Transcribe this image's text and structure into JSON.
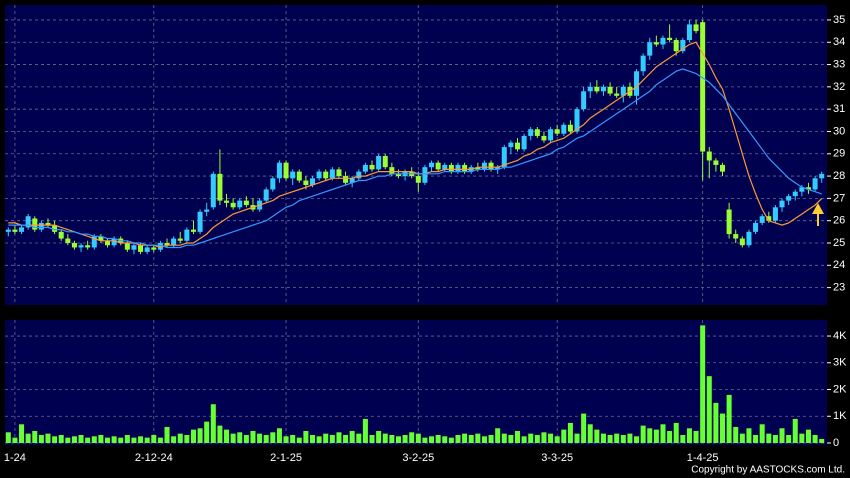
{
  "chart_data": {
    "type": "candlestick",
    "categories": [
      null,
      "1-24",
      null,
      null,
      null,
      null,
      null,
      null,
      null,
      null,
      null,
      null,
      null,
      null,
      null,
      null,
      null,
      null,
      null,
      null,
      null,
      null,
      "2-12-24",
      null,
      null,
      null,
      null,
      null,
      null,
      null,
      null,
      null,
      null,
      null,
      null,
      null,
      null,
      null,
      null,
      null,
      null,
      null,
      "2-1-25",
      null,
      null,
      null,
      null,
      null,
      null,
      null,
      null,
      null,
      null,
      null,
      null,
      null,
      null,
      null,
      null,
      null,
      null,
      null,
      "3-2-25",
      null,
      null,
      null,
      null,
      null,
      null,
      null,
      null,
      null,
      null,
      null,
      null,
      null,
      null,
      null,
      null,
      null,
      null,
      null,
      null,
      "3-3-25",
      null,
      null,
      null,
      null,
      null,
      null,
      null,
      null,
      null,
      null,
      null,
      null,
      null,
      null,
      null,
      null,
      null,
      null,
      null,
      null,
      null,
      "1-4-25",
      null,
      null,
      null,
      null,
      null,
      null,
      null,
      null,
      null,
      null,
      null,
      null,
      null,
      null,
      null,
      null,
      null,
      null
    ],
    "open": [
      25.5,
      25.6,
      25.5,
      25.7,
      26.1,
      25.6,
      25.9,
      25.8,
      25.5,
      25.2,
      25.0,
      24.8,
      24.9,
      24.8,
      25.3,
      25.1,
      24.9,
      25.2,
      25.0,
      24.7,
      24.9,
      24.6,
      24.8,
      24.7,
      25.0,
      24.9,
      25.2,
      25.1,
      25.6,
      25.5,
      26.4,
      26.6,
      28.1,
      26.9,
      26.8,
      26.6,
      26.9,
      26.7,
      26.5,
      26.9,
      27.4,
      27.9,
      28.6,
      27.9,
      28.2,
      27.8,
      27.6,
      27.9,
      28.2,
      27.9,
      28.3,
      28.0,
      27.7,
      27.9,
      28.2,
      28.5,
      28.3,
      28.9,
      28.4,
      28.1,
      28.0,
      28.2,
      28.0,
      27.7,
      28.4,
      28.6,
      28.3,
      28.5,
      28.2,
      28.5,
      28.2,
      28.4,
      28.3,
      28.6,
      28.3,
      28.4,
      29.3,
      29.5,
      29.2,
      29.8,
      30.1,
      29.8,
      29.6,
      30.1,
      29.9,
      30.3,
      30.0,
      31.0,
      31.8,
      32.0,
      31.8,
      32.0,
      31.7,
      31.6,
      32.0,
      31.6,
      32.7,
      33.4,
      34.0,
      33.9,
      34.2,
      34.1,
      33.6,
      34.1,
      34.8,
      34.9,
      29.1,
      28.7,
      28.5,
      26.5,
      25.4,
      25.2,
      24.9,
      25.5,
      25.9,
      26.2,
      26.0,
      26.6,
      26.9,
      27.1,
      27.3,
      27.5,
      27.4,
      27.9
    ],
    "high": [
      25.7,
      25.8,
      25.8,
      26.3,
      26.2,
      26.0,
      26.1,
      26.0,
      25.6,
      25.4,
      25.1,
      25.0,
      25.1,
      25.4,
      25.4,
      25.2,
      25.3,
      25.3,
      25.1,
      25.0,
      25.0,
      24.9,
      24.9,
      25.1,
      25.2,
      25.3,
      25.5,
      25.7,
      26.0,
      26.5,
      26.8,
      28.2,
      29.2,
      27.2,
      27.0,
      27.0,
      27.1,
      27.0,
      27.0,
      27.5,
      28.0,
      28.7,
      28.7,
      28.3,
      28.3,
      28.0,
      28.0,
      28.3,
      28.3,
      28.4,
      28.4,
      28.2,
      28.0,
      28.3,
      28.6,
      28.7,
      29.0,
      29.0,
      28.6,
      28.3,
      28.3,
      28.4,
      28.2,
      28.5,
      28.7,
      28.7,
      28.6,
      28.6,
      28.6,
      28.6,
      28.5,
      28.6,
      28.7,
      28.7,
      28.5,
      29.4,
      29.6,
      29.7,
      29.9,
      30.2,
      30.2,
      30.0,
      30.2,
      30.3,
      30.4,
      30.5,
      31.1,
      32.0,
      32.2,
      32.3,
      32.1,
      32.2,
      32.0,
      32.1,
      32.2,
      32.8,
      33.5,
      34.2,
      34.3,
      34.3,
      34.8,
      34.2,
      34.2,
      35.0,
      35.0,
      35.0,
      29.3,
      28.8,
      28.6,
      26.8,
      25.6,
      25.3,
      25.6,
      26.0,
      26.3,
      26.4,
      26.7,
      27.0,
      27.2,
      27.4,
      27.6,
      27.7,
      28.0,
      28.2
    ],
    "low": [
      25.3,
      25.4,
      25.4,
      25.6,
      25.5,
      25.5,
      25.7,
      25.4,
      25.1,
      24.9,
      24.7,
      24.6,
      24.7,
      24.7,
      25.0,
      24.8,
      24.8,
      24.9,
      24.6,
      24.5,
      24.5,
      24.5,
      24.6,
      24.6,
      24.8,
      24.8,
      25.0,
      25.0,
      25.4,
      25.4,
      26.2,
      26.5,
      26.7,
      26.6,
      26.5,
      26.5,
      26.6,
      26.4,
      26.4,
      26.8,
      27.3,
      27.7,
      27.8,
      27.6,
      27.7,
      27.4,
      27.5,
      27.8,
      27.8,
      27.8,
      27.9,
      27.6,
      27.5,
      27.8,
      28.1,
      28.2,
      28.2,
      28.3,
      28.0,
      27.9,
      27.8,
      27.9,
      27.3,
      27.6,
      28.2,
      28.2,
      28.2,
      28.1,
      28.1,
      28.1,
      28.1,
      28.2,
      28.2,
      28.2,
      28.1,
      28.3,
      29.0,
      29.1,
      29.1,
      29.6,
      29.7,
      29.5,
      29.5,
      29.8,
      29.8,
      29.9,
      29.9,
      30.9,
      31.5,
      31.7,
      31.6,
      31.6,
      31.5,
      31.3,
      31.5,
      31.2,
      32.5,
      33.2,
      33.8,
      33.7,
      34.0,
      33.4,
      33.5,
      34.0,
      34.4,
      27.8,
      27.9,
      28.2,
      28.0,
      25.2,
      25.0,
      24.8,
      24.8,
      25.4,
      25.8,
      25.9,
      25.9,
      26.4,
      26.7,
      26.9,
      27.1,
      27.2,
      27.3,
      27.7
    ],
    "close": [
      25.6,
      25.5,
      25.7,
      26.2,
      25.6,
      25.9,
      25.8,
      25.5,
      25.2,
      25.0,
      24.8,
      24.9,
      24.8,
      25.3,
      25.1,
      24.9,
      25.2,
      25.0,
      24.7,
      24.9,
      24.6,
      24.8,
      24.7,
      25.0,
      24.9,
      25.2,
      25.1,
      25.6,
      25.5,
      26.4,
      26.5,
      28.1,
      26.9,
      26.8,
      26.6,
      26.9,
      26.7,
      26.5,
      26.9,
      27.4,
      27.9,
      28.6,
      27.9,
      28.2,
      27.8,
      27.6,
      27.9,
      28.2,
      27.9,
      28.3,
      28.0,
      27.7,
      27.9,
      28.2,
      28.5,
      28.3,
      28.9,
      28.4,
      28.1,
      28.0,
      28.2,
      28.0,
      27.7,
      28.4,
      28.6,
      28.3,
      28.5,
      28.2,
      28.5,
      28.2,
      28.4,
      28.3,
      28.6,
      28.3,
      28.4,
      29.3,
      29.5,
      29.2,
      29.8,
      30.1,
      29.8,
      29.6,
      30.1,
      29.9,
      30.3,
      30.0,
      31.0,
      31.8,
      32.0,
      31.8,
      32.0,
      31.7,
      31.6,
      32.0,
      31.6,
      32.7,
      33.4,
      34.0,
      33.9,
      34.2,
      34.1,
      33.6,
      34.1,
      34.8,
      34.5,
      29.1,
      28.7,
      28.5,
      28.2,
      25.4,
      25.2,
      24.9,
      25.5,
      25.9,
      26.2,
      26.0,
      26.6,
      26.9,
      27.1,
      27.3,
      27.5,
      27.4,
      27.9,
      28.1
    ],
    "up_color": "#33ccff",
    "down_color": "#99ff33",
    "ma": [
      {
        "color": "#ff9933",
        "values": [
          25.9,
          25.9,
          25.8,
          25.8,
          25.8,
          25.8,
          25.8,
          25.8,
          25.7,
          25.6,
          25.5,
          25.4,
          25.3,
          25.2,
          25.1,
          25.1,
          25.1,
          25.0,
          25.0,
          25.0,
          24.9,
          24.9,
          24.9,
          24.8,
          24.9,
          24.9,
          24.9,
          25.0,
          25.0,
          25.2,
          25.4,
          25.7,
          25.9,
          26.1,
          26.3,
          26.4,
          26.5,
          26.6,
          26.7,
          26.8,
          26.9,
          27.1,
          27.2,
          27.3,
          27.4,
          27.5,
          27.6,
          27.7,
          27.8,
          27.9,
          27.9,
          27.9,
          27.9,
          28.0,
          28.0,
          28.1,
          28.2,
          28.2,
          28.2,
          28.2,
          28.2,
          28.2,
          28.1,
          28.1,
          28.2,
          28.2,
          28.3,
          28.3,
          28.3,
          28.3,
          28.3,
          28.4,
          28.4,
          28.4,
          28.4,
          28.5,
          28.6,
          28.7,
          28.9,
          29.0,
          29.2,
          29.3,
          29.5,
          29.6,
          29.7,
          29.9,
          30.1,
          30.3,
          30.6,
          30.8,
          31.0,
          31.2,
          31.4,
          31.6,
          31.8,
          32.0,
          32.3,
          32.6,
          32.9,
          33.1,
          33.3,
          33.5,
          33.7,
          33.9,
          34.0,
          33.5,
          33.0,
          32.4,
          31.9,
          31.0,
          30.0,
          29.0,
          28.0,
          27.2,
          26.5,
          26.0,
          25.9,
          25.8,
          25.9,
          26.1,
          26.3,
          26.5,
          26.7,
          27.0
        ]
      },
      {
        "color": "#3399ff",
        "values": [
          25.8,
          25.8,
          25.8,
          25.8,
          25.7,
          25.7,
          25.7,
          25.6,
          25.6,
          25.5,
          25.5,
          25.4,
          25.4,
          25.3,
          25.3,
          25.2,
          25.2,
          25.1,
          25.1,
          25.0,
          25.0,
          24.9,
          24.9,
          24.9,
          24.8,
          24.8,
          24.8,
          24.9,
          24.9,
          25.0,
          25.1,
          25.2,
          25.3,
          25.4,
          25.5,
          25.6,
          25.7,
          25.8,
          25.9,
          26.0,
          26.2,
          26.4,
          26.6,
          26.7,
          26.9,
          27.0,
          27.1,
          27.2,
          27.3,
          27.4,
          27.5,
          27.6,
          27.7,
          27.8,
          27.8,
          27.9,
          28.0,
          28.0,
          28.1,
          28.1,
          28.1,
          28.1,
          28.1,
          28.1,
          28.1,
          28.1,
          28.2,
          28.2,
          28.2,
          28.2,
          28.2,
          28.3,
          28.3,
          28.3,
          28.3,
          28.4,
          28.4,
          28.5,
          28.6,
          28.7,
          28.8,
          28.9,
          29.0,
          29.2,
          29.3,
          29.5,
          29.7,
          29.8,
          30.0,
          30.2,
          30.4,
          30.6,
          30.8,
          31.0,
          31.2,
          31.4,
          31.6,
          31.8,
          32.1,
          32.3,
          32.5,
          32.7,
          32.8,
          32.7,
          32.6,
          32.4,
          32.2,
          31.9,
          31.6,
          31.2,
          30.8,
          30.4,
          30.0,
          29.6,
          29.2,
          28.8,
          28.5,
          28.2,
          27.9,
          27.7,
          27.5,
          27.4,
          27.3,
          27.2
        ]
      }
    ],
    "ylim": [
      22.22,
      35.67
    ],
    "yticks": [
      23,
      24,
      25,
      26,
      27,
      28,
      29,
      30,
      31,
      32,
      33,
      34,
      35
    ],
    "grid": true,
    "volume": {
      "color": "#66ff33",
      "values": [
        400,
        200,
        700,
        350,
        450,
        300,
        350,
        250,
        300,
        200,
        250,
        300,
        200,
        250,
        300,
        200,
        250,
        200,
        300,
        200,
        250,
        200,
        300,
        200,
        600,
        250,
        350,
        300,
        500,
        550,
        800,
        1450,
        650,
        500,
        350,
        400,
        300,
        450,
        350,
        300,
        400,
        550,
        250,
        300,
        200,
        450,
        300,
        250,
        350,
        300,
        400,
        300,
        450,
        350,
        900,
        300,
        450,
        350,
        300,
        250,
        300,
        400,
        350,
        200,
        250,
        300,
        250,
        200,
        300,
        350,
        300,
        350,
        250,
        300,
        550,
        350,
        300,
        450,
        250,
        350,
        300,
        400,
        350,
        250,
        500,
        750,
        350,
        1100,
        700,
        500,
        350,
        300,
        350,
        300,
        350,
        250,
        650,
        550,
        500,
        700,
        450,
        750,
        300,
        550,
        450,
        4400,
        2500,
        1500,
        1100,
        1800,
        600,
        350,
        550,
        300,
        700,
        350,
        300,
        550,
        300,
        900,
        350,
        500,
        300,
        150
      ],
      "ylim": [
        0,
        4600
      ],
      "yticks": [
        0,
        {
          "value": 1000,
          "label": "1K"
        },
        {
          "value": 2000,
          "label": "2K"
        },
        {
          "value": 3000,
          "label": "3K"
        },
        {
          "value": 4000,
          "label": "4K"
        }
      ]
    },
    "footer": "Copyright by AASTOCKS.com Ltd."
  }
}
